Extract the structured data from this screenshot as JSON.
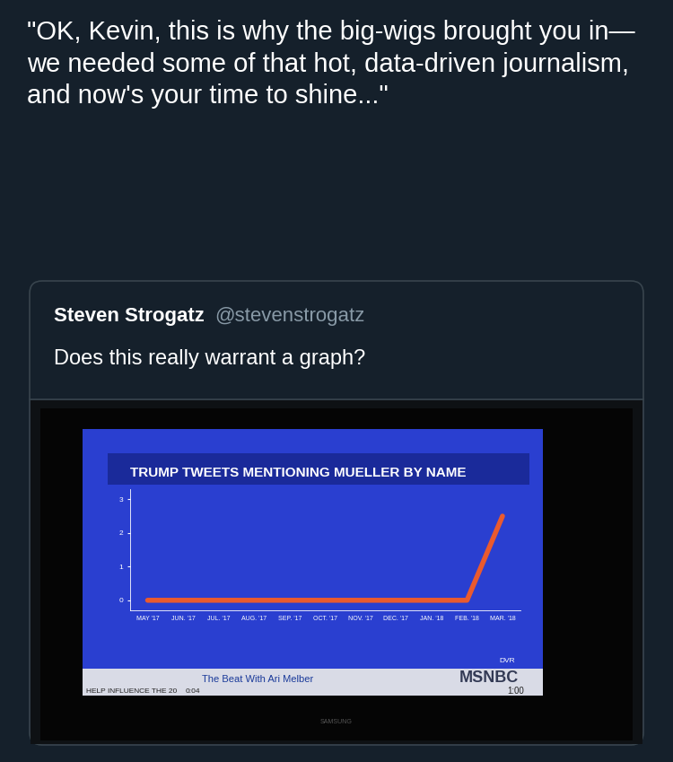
{
  "tweet": {
    "text": "\"OK, Kevin, this is why the big-wigs brought you in— we needed some of that hot, data-driven journalism, and now's your time to shine...\""
  },
  "quoted_tweet": {
    "name": "Steven Strogatz",
    "handle": "@stevenstrogatz",
    "text": "Does this really warrant a graph?"
  },
  "tv": {
    "show": "The Beat With Ari Melber",
    "network": "MSNBC",
    "badge": "DVR",
    "ticker": "HELP INFLUENCE THE 20",
    "time": "0:04",
    "clock": "1:00",
    "brand": "SAMSUNG"
  },
  "chart_data": {
    "type": "line",
    "title": "TRUMP TWEETS MENTIONING MUELLER BY NAME",
    "categories": [
      "MAY '17",
      "JUN. '17",
      "JUL. '17",
      "AUG. '17",
      "SEP. '17",
      "OCT. '17",
      "NOV. '17",
      "DEC. '17",
      "JAN. '18",
      "FEB. '18",
      "MAR. '18"
    ],
    "values": [
      0,
      0,
      0,
      0,
      0,
      0,
      0,
      0,
      0,
      0,
      2.5
    ],
    "color": "#ea5a2e",
    "ylim": [
      -0.3,
      3.3
    ],
    "yticks": [
      0,
      1,
      2,
      3
    ],
    "grid": false
  }
}
